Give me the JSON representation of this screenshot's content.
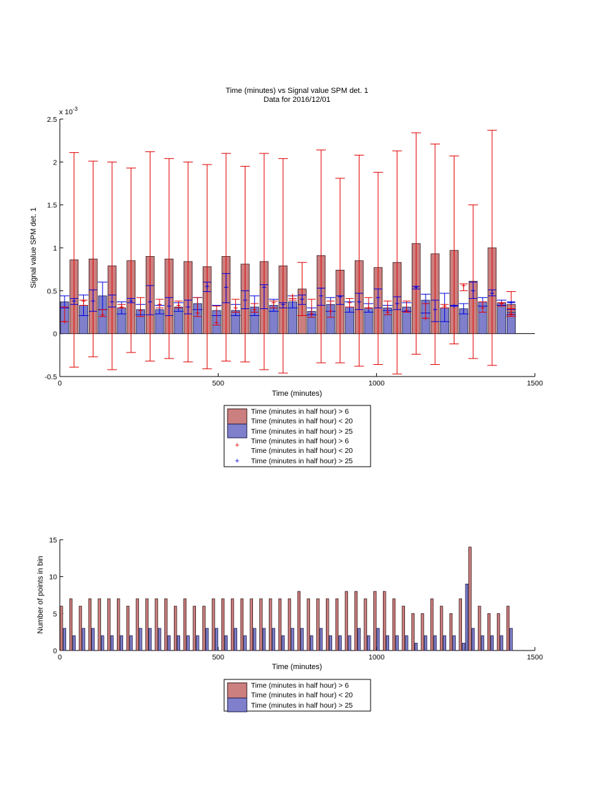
{
  "colors": {
    "red_bar_fill": "#cc7f7f",
    "red_bar_stroke": "#3a1a1a",
    "blue_bar_fill": "#7f7fcc",
    "blue_bar_stroke": "#1a1a4a",
    "red_errorbar": "#e00000",
    "blue_errorbar": "#0000dd"
  },
  "chart_data": [
    {
      "type": "bar",
      "title": "Time (minutes) vs Signal value SPM det. 1",
      "subtitle": "Data for 2016/12/01",
      "xlabel": "Time (minutes)",
      "ylabel": "Signal value SPM det. 1",
      "y_exponent_label": "x 10",
      "y_exponent_power": "-3",
      "xlim": [
        0,
        1500
      ],
      "ylim": [
        -0.5,
        2.5
      ],
      "xticks": [
        "0",
        "500",
        "1000",
        "1500"
      ],
      "yticks": [
        "-0.5",
        "0",
        "0.5",
        "1",
        "1.5",
        "2",
        "2.5"
      ],
      "legend_position": "below",
      "legend": [
        "Time (minutes in half hour) > 6",
        "Time (minutes in half hour) < 20",
        "Time (minutes in half hour) > 25",
        "Time (minutes in half hour) > 6",
        "Time (minutes in half hour) < 20",
        "Time (minutes in half hour) > 25"
      ],
      "bar_width_minutes": 26,
      "series": [
        {
          "kind": "bar",
          "x": [
            45,
            105,
            165,
            225,
            285,
            345,
            405,
            465,
            525,
            585,
            645,
            705,
            765,
            825,
            885,
            945,
            1005,
            1065,
            1125,
            1185,
            1245,
            1305,
            1365,
            1425
          ],
          "values": [
            0.86,
            0.87,
            0.79,
            0.85,
            0.9,
            0.87,
            0.84,
            0.78,
            0.9,
            0.81,
            0.84,
            0.79,
            0.52,
            0.91,
            0.74,
            0.85,
            0.77,
            0.83,
            1.05,
            0.93,
            0.97,
            0.61,
            1.0,
            0.34
          ],
          "err_low": [
            -0.39,
            -0.27,
            -0.42,
            -0.22,
            -0.32,
            -0.29,
            -0.33,
            -0.41,
            -0.32,
            -0.33,
            -0.42,
            -0.46,
            0.21,
            -0.34,
            -0.34,
            -0.38,
            -0.36,
            -0.47,
            -0.24,
            -0.36,
            -0.12,
            -0.29,
            -0.37,
            0.2
          ],
          "err_high": [
            2.11,
            2.01,
            2.0,
            1.93,
            2.12,
            2.04,
            2.0,
            1.97,
            2.1,
            1.95,
            2.1,
            2.04,
            0.83,
            2.14,
            1.81,
            2.08,
            1.88,
            2.13,
            2.34,
            2.21,
            2.07,
            1.5,
            2.37,
            0.49
          ]
        },
        {
          "kind": "bar",
          "x": [
            15,
            75,
            135,
            195,
            255,
            315,
            375,
            435,
            495,
            555,
            615,
            675,
            735,
            795,
            855,
            915,
            975,
            1035,
            1095,
            1155,
            1215,
            1275,
            1335,
            1395,
            1425
          ],
          "values": [
            0.37,
            0.33,
            0.44,
            0.3,
            0.28,
            0.28,
            0.31,
            0.35,
            0.27,
            0.27,
            0.31,
            0.33,
            0.37,
            0.26,
            0.34,
            0.31,
            0.3,
            0.3,
            0.31,
            0.39,
            0.3,
            0.29,
            0.37,
            0.36,
            0.25
          ],
          "err_low": [
            0.3,
            0.21,
            0.28,
            0.23,
            0.22,
            0.23,
            0.26,
            0.28,
            0.21,
            0.21,
            0.21,
            0.26,
            0.3,
            0.22,
            0.26,
            0.25,
            0.25,
            0.27,
            0.26,
            0.24,
            0.14,
            0.23,
            0.32,
            0.33,
            0.22
          ],
          "err_high": [
            0.44,
            0.45,
            0.6,
            0.37,
            0.34,
            0.33,
            0.36,
            0.42,
            0.33,
            0.34,
            0.44,
            0.4,
            0.44,
            0.3,
            0.42,
            0.37,
            0.35,
            0.33,
            0.36,
            0.46,
            0.47,
            0.35,
            0.42,
            0.39,
            0.28
          ]
        },
        {
          "kind": "errorbar",
          "x": [
            15,
            75,
            135,
            195,
            255,
            315,
            375,
            435,
            495,
            555,
            615,
            675,
            735,
            795,
            855,
            915,
            975,
            1035,
            1095,
            1155,
            1215,
            1275,
            1335,
            1395,
            1425
          ],
          "values": [
            0.14,
            0.38,
            0.22,
            0.31,
            0.27,
            0.34,
            0.33,
            0.24,
            0.13,
            0.3,
            0.28,
            0.36,
            0.44,
            0.23,
            0.26,
            0.36,
            0.3,
            0.25,
            0.27,
            0.18,
            0.32,
            0.56,
            0.3,
            0.35,
            0.23
          ],
          "err_low": [
            0.14,
            0.33,
            0.2,
            0.3,
            0.2,
            0.3,
            0.3,
            0.2,
            0.1,
            0.25,
            0.25,
            0.3,
            0.39,
            0.19,
            0.19,
            0.31,
            0.3,
            0.22,
            0.25,
            0.18,
            0.3,
            0.5,
            0.25,
            0.32,
            0.22
          ],
          "err_high": [
            0.31,
            0.39,
            0.28,
            0.34,
            0.42,
            0.4,
            0.38,
            0.42,
            0.32,
            0.4,
            0.35,
            0.38,
            0.41,
            0.4,
            0.38,
            0.41,
            0.42,
            0.38,
            0.38,
            0.35,
            0.34,
            0.58,
            0.37,
            0.36,
            0.29
          ]
        },
        {
          "kind": "errorbar",
          "x": [
            45,
            105,
            165,
            225,
            285,
            345,
            405,
            465,
            525,
            585,
            645,
            705,
            765,
            825,
            885,
            945,
            1005,
            1065,
            1125,
            1185,
            1245,
            1305,
            1365,
            1425
          ],
          "values": [
            0.38,
            0.38,
            0.37,
            0.38,
            0.37,
            0.32,
            0.31,
            0.55,
            0.54,
            0.39,
            0.54,
            0.34,
            0.4,
            0.44,
            0.43,
            0.37,
            0.42,
            0.35,
            0.54,
            0.28,
            0.32,
            0.5,
            0.47,
            0.36
          ],
          "err_low": [
            0.34,
            0.26,
            0.31,
            0.36,
            0.22,
            0.21,
            0.23,
            0.49,
            0.36,
            0.29,
            0.29,
            0.3,
            0.34,
            0.33,
            0.34,
            0.28,
            0.3,
            0.28,
            0.52,
            0.14,
            0.32,
            0.41,
            0.44,
            0.36
          ],
          "err_high": [
            0.41,
            0.51,
            0.45,
            0.41,
            0.56,
            0.42,
            0.39,
            0.6,
            0.7,
            0.5,
            0.57,
            0.36,
            0.45,
            0.53,
            0.44,
            0.47,
            0.52,
            0.43,
            0.55,
            0.39,
            0.33,
            0.6,
            0.51,
            0.37
          ]
        }
      ]
    },
    {
      "type": "bar",
      "title": "",
      "xlabel": "Time (minutes)",
      "ylabel": "Number of points in bin",
      "xlim": [
        0,
        1500
      ],
      "ylim": [
        0,
        15
      ],
      "xticks": [
        "0",
        "500",
        "1000",
        "1500"
      ],
      "yticks": [
        "0",
        "5",
        "10",
        "15"
      ],
      "legend_position": "below",
      "legend": [
        "Time (minutes in half hour) > 6",
        "Time (minutes in half hour) < 20",
        "Time (minutes in half hour) > 25"
      ],
      "bar_width_minutes": 8,
      "series": [
        {
          "x": [
            5,
            35,
            65,
            95,
            125,
            155,
            185,
            215,
            245,
            275,
            305,
            335,
            365,
            395,
            425,
            455,
            485,
            515,
            545,
            575,
            605,
            635,
            665,
            695,
            725,
            755,
            785,
            815,
            845,
            875,
            905,
            935,
            965,
            995,
            1025,
            1055,
            1085,
            1115,
            1145,
            1175,
            1205,
            1235,
            1265,
            1295,
            1325,
            1355,
            1385,
            1415
          ],
          "values": [
            6,
            7,
            6,
            7,
            7,
            7,
            7,
            6,
            7,
            7,
            7,
            7,
            6,
            7,
            6,
            6,
            7,
            7,
            7,
            7,
            7,
            7,
            7,
            7,
            7,
            8,
            7,
            7,
            7,
            7,
            8,
            8,
            7,
            8,
            8,
            7,
            6,
            5,
            5,
            7,
            6,
            5,
            7,
            14,
            6,
            5,
            5,
            6
          ]
        },
        {
          "x": [
            15,
            45,
            75,
            105,
            135,
            165,
            195,
            225,
            255,
            285,
            315,
            345,
            375,
            405,
            435,
            465,
            495,
            525,
            555,
            585,
            615,
            645,
            675,
            705,
            735,
            765,
            795,
            825,
            855,
            885,
            915,
            945,
            975,
            1005,
            1035,
            1065,
            1095,
            1125,
            1155,
            1185,
            1215,
            1245,
            1275,
            1285,
            1305,
            1335,
            1365,
            1395,
            1425
          ],
          "values": [
            3,
            2,
            3,
            3,
            2,
            2,
            2,
            2,
            3,
            3,
            3,
            2,
            2,
            2,
            2,
            3,
            3,
            2,
            3,
            2,
            3,
            3,
            3,
            2,
            3,
            3,
            2,
            3,
            2,
            2,
            2,
            3,
            2,
            3,
            2,
            2,
            2,
            1,
            2,
            2,
            2,
            2,
            1,
            9,
            3,
            2,
            2,
            2,
            3
          ]
        }
      ]
    }
  ]
}
